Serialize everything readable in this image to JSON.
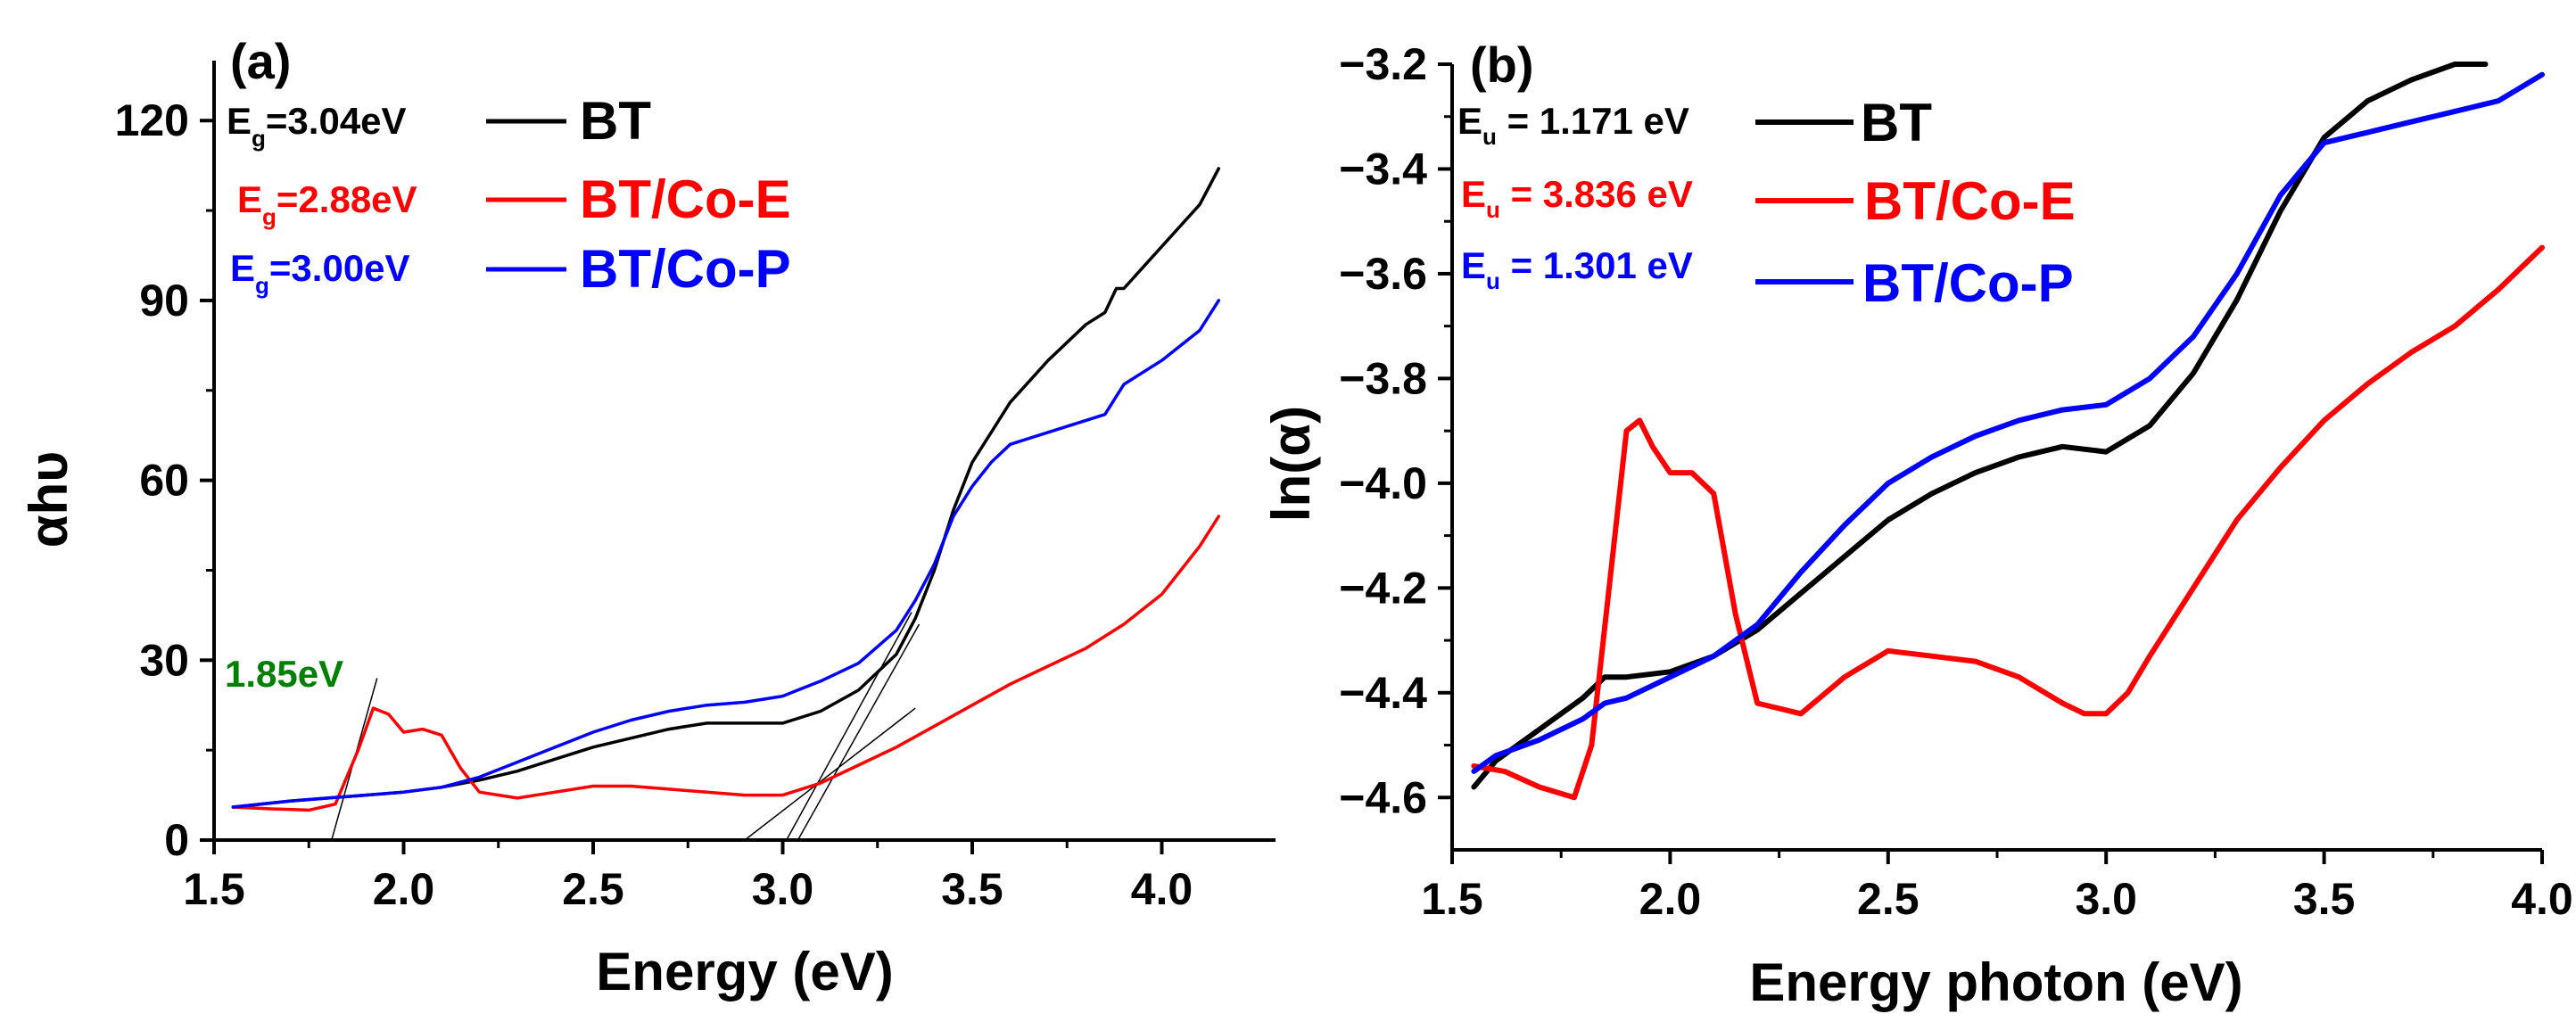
{
  "chart_data": [
    {
      "type": "line",
      "panel_label": "(a)",
      "xlabel": "Energy (eV)",
      "ylabel": "αhυ",
      "xlim": [
        1.5,
        4.3
      ],
      "ylim": [
        0,
        130
      ],
      "xticks": [
        "1.5",
        "2.0",
        "2.5",
        "3.0",
        "3.5",
        "4.0"
      ],
      "yticks": [
        "0",
        "30",
        "60",
        "90",
        "120"
      ],
      "grid": false,
      "legend_position": "top-left",
      "annotation": {
        "text": "1.85eV",
        "color": "#008000"
      },
      "series": [
        {
          "name": "BT",
          "color": "#000000",
          "gap_label": {
            "prefix": "E",
            "sub": "g",
            "text": "=3.04eV"
          },
          "x": [
            1.55,
            1.7,
            1.8,
            1.9,
            2.0,
            2.1,
            2.2,
            2.3,
            2.4,
            2.5,
            2.6,
            2.7,
            2.8,
            2.9,
            3.0,
            3.1,
            3.2,
            3.3,
            3.35,
            3.4,
            3.45,
            3.5,
            3.55,
            3.6,
            3.7,
            3.8,
            3.85,
            3.88,
            3.9,
            4.0,
            4.1,
            4.15
          ],
          "y": [
            5.5,
            6.5,
            7.0,
            7.5,
            8.0,
            8.8,
            10.0,
            11.5,
            13.5,
            15.5,
            17.0,
            18.5,
            19.5,
            19.5,
            19.5,
            21.5,
            25.0,
            31.0,
            37.0,
            45.0,
            55.0,
            63.0,
            68.0,
            73.0,
            80.0,
            86.0,
            88.0,
            92.0,
            92.0,
            99.0,
            106.0,
            112.0
          ]
        },
        {
          "name": "BT/Co-E",
          "color": "#ff0000",
          "gap_label": {
            "prefix": "E",
            "sub": "g",
            "text": "=2.88eV"
          },
          "x": [
            1.55,
            1.65,
            1.75,
            1.82,
            1.88,
            1.92,
            1.96,
            2.0,
            2.05,
            2.1,
            2.15,
            2.2,
            2.3,
            2.4,
            2.5,
            2.6,
            2.7,
            2.8,
            2.9,
            3.0,
            3.1,
            3.2,
            3.3,
            3.4,
            3.5,
            3.6,
            3.7,
            3.8,
            3.9,
            4.0,
            4.1,
            4.15
          ],
          "y": [
            5.5,
            5.2,
            5.0,
            6.0,
            15.0,
            22.0,
            21.0,
            18.0,
            18.5,
            17.5,
            12.0,
            8.0,
            7.0,
            8.0,
            9.0,
            9.0,
            8.5,
            8.0,
            7.5,
            7.5,
            9.5,
            12.5,
            15.5,
            19.0,
            22.5,
            26.0,
            29.0,
            32.0,
            36.0,
            41.0,
            49.0,
            54.0
          ]
        },
        {
          "name": "BT/Co-P",
          "color": "#0000ff",
          "gap_label": {
            "prefix": "E",
            "sub": "g",
            "text": "=3.00eV"
          },
          "x": [
            1.55,
            1.7,
            1.8,
            1.9,
            2.0,
            2.1,
            2.2,
            2.3,
            2.4,
            2.5,
            2.6,
            2.7,
            2.8,
            2.9,
            3.0,
            3.1,
            3.2,
            3.3,
            3.35,
            3.4,
            3.45,
            3.5,
            3.55,
            3.6,
            3.7,
            3.8,
            3.85,
            3.9,
            4.0,
            4.1,
            4.15
          ],
          "y": [
            5.5,
            6.5,
            7.0,
            7.5,
            8.0,
            8.8,
            10.5,
            13.0,
            15.5,
            18.0,
            20.0,
            21.5,
            22.5,
            23.0,
            24.0,
            26.5,
            29.5,
            35.0,
            40.0,
            46.0,
            54.0,
            59.0,
            63.0,
            66.0,
            68.0,
            70.0,
            71.0,
            76.0,
            80.0,
            85.0,
            90.0
          ]
        }
      ],
      "tangent_lines": [
        {
          "x": [
            1.81,
            1.93
          ],
          "y": [
            0,
            27
          ]
        },
        {
          "x": [
            2.9,
            3.35
          ],
          "y": [
            0,
            22
          ]
        },
        {
          "x": [
            3.01,
            3.34
          ],
          "y": [
            0,
            38
          ]
        },
        {
          "x": [
            3.04,
            3.36
          ],
          "y": [
            0,
            36
          ]
        }
      ]
    },
    {
      "type": "line",
      "panel_label": "(b)",
      "xlabel": "Energy photon (eV)",
      "ylabel": "ln(α)",
      "xlim": [
        1.5,
        4.0
      ],
      "ylim": [
        -4.7,
        -3.2
      ],
      "xticks": [
        "1.5",
        "2.0",
        "2.5",
        "3.0",
        "3.5",
        "4.0"
      ],
      "yticks": [
        "−3.2",
        "−3.4",
        "−3.6",
        "−3.8",
        "−4.0",
        "−4.2",
        "−4.4",
        "−4.6"
      ],
      "grid": false,
      "legend_position": "top-left",
      "series": [
        {
          "name": "BT",
          "color": "#000000",
          "urbach_label": {
            "prefix": "E",
            "sub": "u",
            "text": " = 1.171 eV"
          },
          "x": [
            1.55,
            1.6,
            1.7,
            1.8,
            1.85,
            1.9,
            2.0,
            2.1,
            2.2,
            2.3,
            2.4,
            2.5,
            2.6,
            2.7,
            2.8,
            2.9,
            3.0,
            3.1,
            3.2,
            3.3,
            3.4,
            3.5,
            3.6,
            3.7,
            3.8,
            3.87
          ],
          "y": [
            -4.58,
            -4.53,
            -4.47,
            -4.41,
            -4.37,
            -4.37,
            -4.36,
            -4.33,
            -4.28,
            -4.21,
            -4.14,
            -4.07,
            -4.02,
            -3.98,
            -3.95,
            -3.93,
            -3.94,
            -3.89,
            -3.79,
            -3.65,
            -3.48,
            -3.34,
            -3.27,
            -3.23,
            -3.2,
            -3.2
          ]
        },
        {
          "name": "BT/Co-E",
          "color": "#ff0000",
          "urbach_label": {
            "prefix": "E",
            "sub": "u",
            "text": " = 3.836 eV"
          },
          "x": [
            1.55,
            1.62,
            1.7,
            1.78,
            1.82,
            1.86,
            1.9,
            1.93,
            1.96,
            2.0,
            2.05,
            2.1,
            2.15,
            2.2,
            2.3,
            2.4,
            2.5,
            2.6,
            2.7,
            2.8,
            2.9,
            2.95,
            3.0,
            3.05,
            3.1,
            3.2,
            3.3,
            3.4,
            3.5,
            3.6,
            3.7,
            3.8,
            3.9,
            4.0
          ],
          "y": [
            -4.54,
            -4.55,
            -4.58,
            -4.6,
            -4.5,
            -4.2,
            -3.9,
            -3.88,
            -3.93,
            -3.98,
            -3.98,
            -4.02,
            -4.25,
            -4.42,
            -4.44,
            -4.37,
            -4.32,
            -4.33,
            -4.34,
            -4.37,
            -4.42,
            -4.44,
            -4.44,
            -4.4,
            -4.33,
            -4.2,
            -4.07,
            -3.97,
            -3.88,
            -3.81,
            -3.75,
            -3.7,
            -3.63,
            -3.55
          ]
        },
        {
          "name": "BT/Co-P",
          "color": "#0000ff",
          "urbach_label": {
            "prefix": "E",
            "sub": "u",
            "text": " = 1.301 eV"
          },
          "x": [
            1.55,
            1.6,
            1.7,
            1.8,
            1.85,
            1.9,
            2.0,
            2.1,
            2.2,
            2.3,
            2.4,
            2.5,
            2.6,
            2.7,
            2.8,
            2.9,
            3.0,
            3.1,
            3.2,
            3.3,
            3.4,
            3.5,
            3.6,
            3.7,
            3.8,
            3.9,
            4.0
          ],
          "y": [
            -4.55,
            -4.52,
            -4.49,
            -4.45,
            -4.42,
            -4.41,
            -4.37,
            -4.33,
            -4.27,
            -4.17,
            -4.08,
            -4.0,
            -3.95,
            -3.91,
            -3.88,
            -3.86,
            -3.85,
            -3.8,
            -3.72,
            -3.6,
            -3.45,
            -3.35,
            -3.33,
            -3.31,
            -3.29,
            -3.27,
            -3.22
          ]
        }
      ]
    }
  ]
}
